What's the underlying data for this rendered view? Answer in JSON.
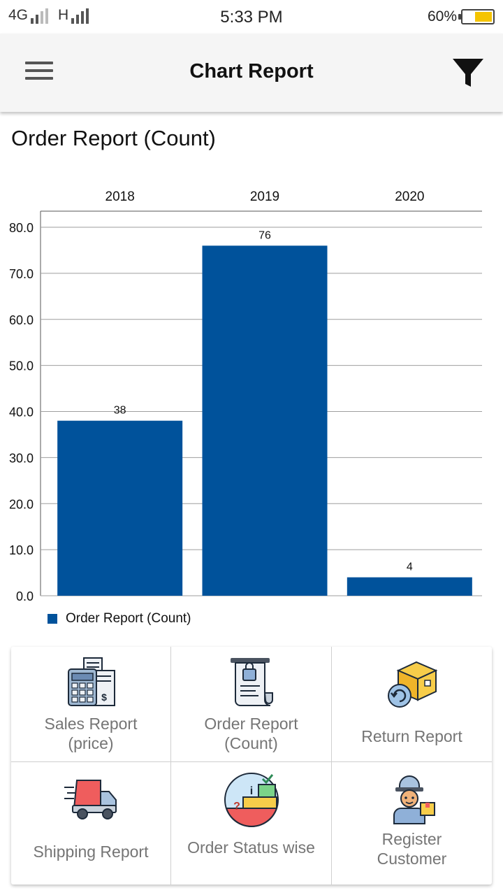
{
  "status_bar": {
    "network_left": "4G",
    "network_right": "H",
    "time": "5:33 PM",
    "battery_percent": "60%",
    "battery_level": 0.6,
    "battery_color": "#f5c400"
  },
  "app_bar": {
    "menu_icon": "hamburger-menu-icon",
    "title": "Chart Report",
    "filter_icon": "filter-funnel-icon"
  },
  "chart_title": "Order Report (Count)",
  "chart_data": {
    "type": "bar",
    "categories": [
      "2018",
      "2019",
      "2020"
    ],
    "series": [
      {
        "name": "Order Report (Count)",
        "values": [
          38,
          76,
          4
        ],
        "color": "#00529b"
      }
    ],
    "value_labels": [
      "38",
      "76",
      "4"
    ],
    "y_ticks": [
      "0.0",
      "10.0",
      "20.0",
      "30.0",
      "40.0",
      "50.0",
      "60.0",
      "70.0",
      "80.0"
    ],
    "ylim": [
      0,
      80
    ],
    "category_axis_position": "top",
    "grid": true,
    "legend": "bottom-left"
  },
  "legend_label": "Order Report (Count)",
  "reports": [
    {
      "label": "Sales Report\n(price)",
      "icon": "calculator-invoice-icon"
    },
    {
      "label": "Order Report\n(Count)",
      "icon": "receipt-bag-icon"
    },
    {
      "label": "Return Report",
      "icon": "return-box-icon"
    },
    {
      "label": "Shipping Report",
      "icon": "delivery-truck-icon"
    },
    {
      "label": "Order Status wise",
      "icon": "order-status-icon"
    },
    {
      "label": "Register\nCustomer",
      "icon": "delivery-person-icon"
    }
  ]
}
